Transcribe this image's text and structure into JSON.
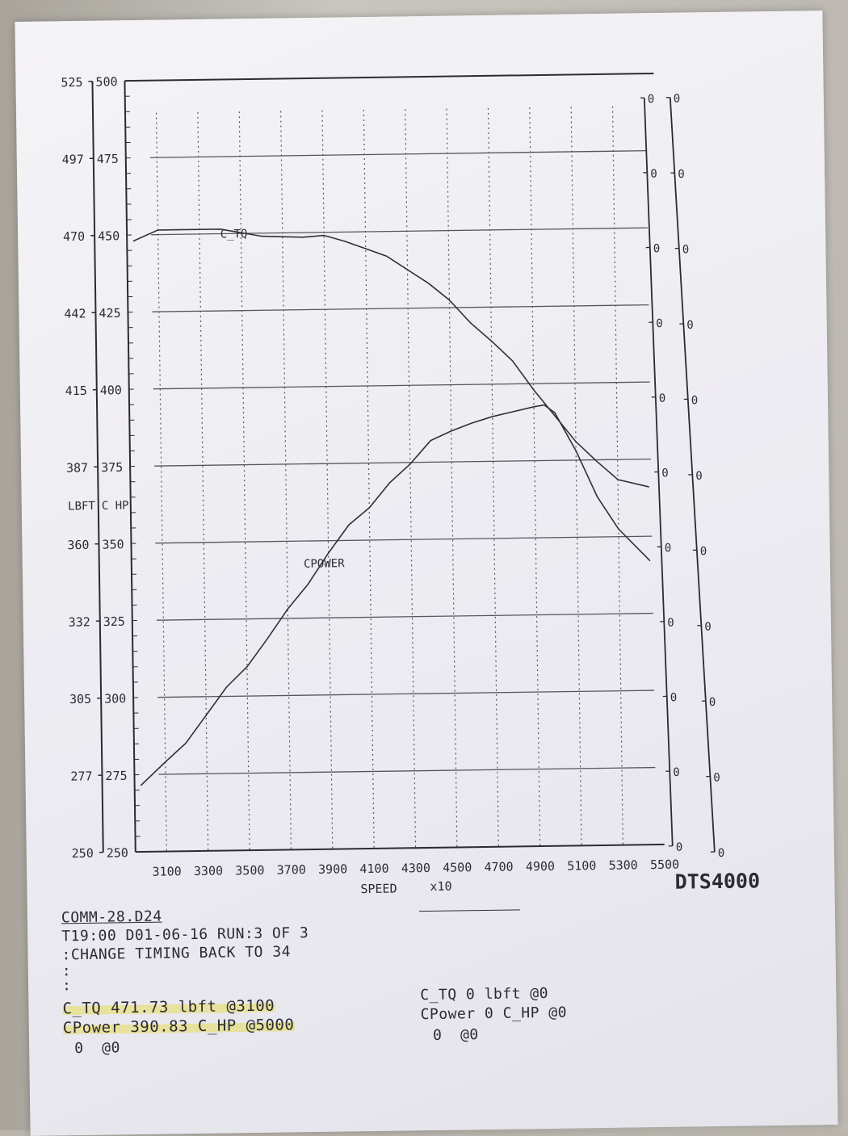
{
  "chart_data": {
    "type": "line",
    "xlabel": "SPEED",
    "xunit": "x10",
    "x_ticks": [
      3100,
      3300,
      3500,
      3700,
      3900,
      4100,
      4300,
      4500,
      4700,
      4900,
      5100,
      5300,
      5500
    ],
    "xlim": [
      2950,
      5500
    ],
    "y_left_ticks": [
      250,
      277,
      305,
      332,
      360,
      387,
      415,
      442,
      470,
      497,
      525
    ],
    "y_left_label": "LBFT",
    "y_right_ticks": [
      250,
      275,
      300,
      325,
      350,
      375,
      400,
      425,
      450,
      475,
      500
    ],
    "y_right_label": "C HP",
    "ylim": [
      250,
      500
    ],
    "aux_axis_ticks": [
      "0",
      "0",
      "0",
      "0",
      "0",
      "0",
      "0",
      "0",
      "0",
      "0",
      "0"
    ],
    "grid": true,
    "series": [
      {
        "name": "C_TQ",
        "axis": "right-hp-scale",
        "x": [
          2980,
          3100,
          3200,
          3400,
          3600,
          3800,
          3900,
          4000,
          4100,
          4200,
          4300,
          4400,
          4500,
          4600,
          4700,
          4800,
          4900,
          5000,
          5100,
          5200,
          5300,
          5450
        ],
        "values": [
          448,
          451.5,
          451.5,
          451.5,
          449,
          448.5,
          449,
          447,
          444.5,
          442,
          437.5,
          433,
          427.5,
          420,
          414,
          407.5,
          398,
          389.5,
          381,
          374.5,
          368.5,
          366
        ]
      },
      {
        "name": "CPower",
        "axis": "right-hp-scale",
        "x": [
          2980,
          3100,
          3200,
          3300,
          3400,
          3500,
          3600,
          3700,
          3800,
          3900,
          4000,
          4100,
          4200,
          4300,
          4400,
          4500,
          4600,
          4700,
          4800,
          4900,
          4950,
          5000,
          5100,
          5200,
          5300,
          5450
        ],
        "values": [
          271.5,
          279,
          285,
          294,
          303,
          309.5,
          318.5,
          328,
          336,
          346,
          355,
          360.5,
          368.5,
          374.5,
          382,
          385,
          387.5,
          389.5,
          391,
          392.5,
          393,
          390.5,
          378,
          363,
          352.5,
          342
        ]
      }
    ],
    "annotations": [
      "C_TQ",
      "CPOWER"
    ]
  },
  "header": {
    "y_left_label": "LBFT",
    "y_right_label": "C HP",
    "brand": "DTS4000"
  },
  "footer": {
    "file": "COMM-28.D24",
    "run_line": "T19:00 D01-06-16 RUN:3 OF 3",
    "note": ":CHANGE TIMING BACK TO 34",
    "dots": ":",
    "dots2": ":",
    "tq_left": "C_TQ 471.73 lbft @3100",
    "power_left": "CPower 390.83 C_HP @5000",
    "zero_left": "0  @0",
    "tq_right": "C_TQ 0 lbft @0",
    "power_right": "CPower 0 C_HP @0",
    "zero_right": "0  @0"
  }
}
